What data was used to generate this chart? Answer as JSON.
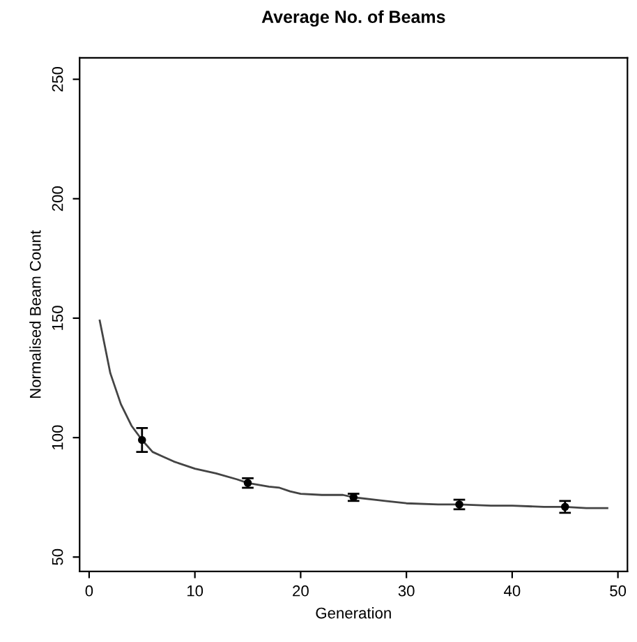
{
  "chart_data": {
    "type": "line",
    "title": "Average No. of Beams",
    "xlabel": "Generation",
    "ylabel": "Normalised Beam Count",
    "xlim": [
      -0.9,
      50.9
    ],
    "ylim": [
      44,
      259
    ],
    "xticks": [
      0,
      10,
      20,
      30,
      40,
      50
    ],
    "yticks": [
      50,
      100,
      150,
      200,
      250
    ],
    "grid": false,
    "legend": false,
    "series": [
      {
        "color": "#444444",
        "marker": "none",
        "line_style": "solid",
        "x": [
          1,
          2,
          3,
          4,
          5,
          6,
          7,
          8,
          10,
          12,
          14,
          15,
          17,
          18,
          19,
          20,
          22,
          24,
          25,
          27,
          28,
          30,
          33,
          35,
          38,
          40,
          43,
          45,
          47,
          49
        ],
        "values": [
          149,
          127,
          114,
          105,
          99,
          94,
          92,
          90,
          87,
          85,
          82.5,
          81,
          79.5,
          79,
          77.5,
          76.5,
          76,
          76,
          75,
          74,
          73.5,
          72.5,
          72,
          72,
          71.5,
          71.5,
          71,
          71,
          70.5,
          70.5
        ]
      },
      {
        "type": "scatter",
        "color": "#000000",
        "marker": "circle",
        "x": [
          5,
          15,
          25,
          35,
          45
        ],
        "values": [
          99,
          81,
          75,
          72,
          71
        ],
        "errors": [
          [
            94,
            104
          ],
          [
            79,
            83
          ],
          [
            73.5,
            76.5
          ],
          [
            70,
            74
          ],
          [
            68.5,
            73.5
          ]
        ]
      }
    ]
  }
}
